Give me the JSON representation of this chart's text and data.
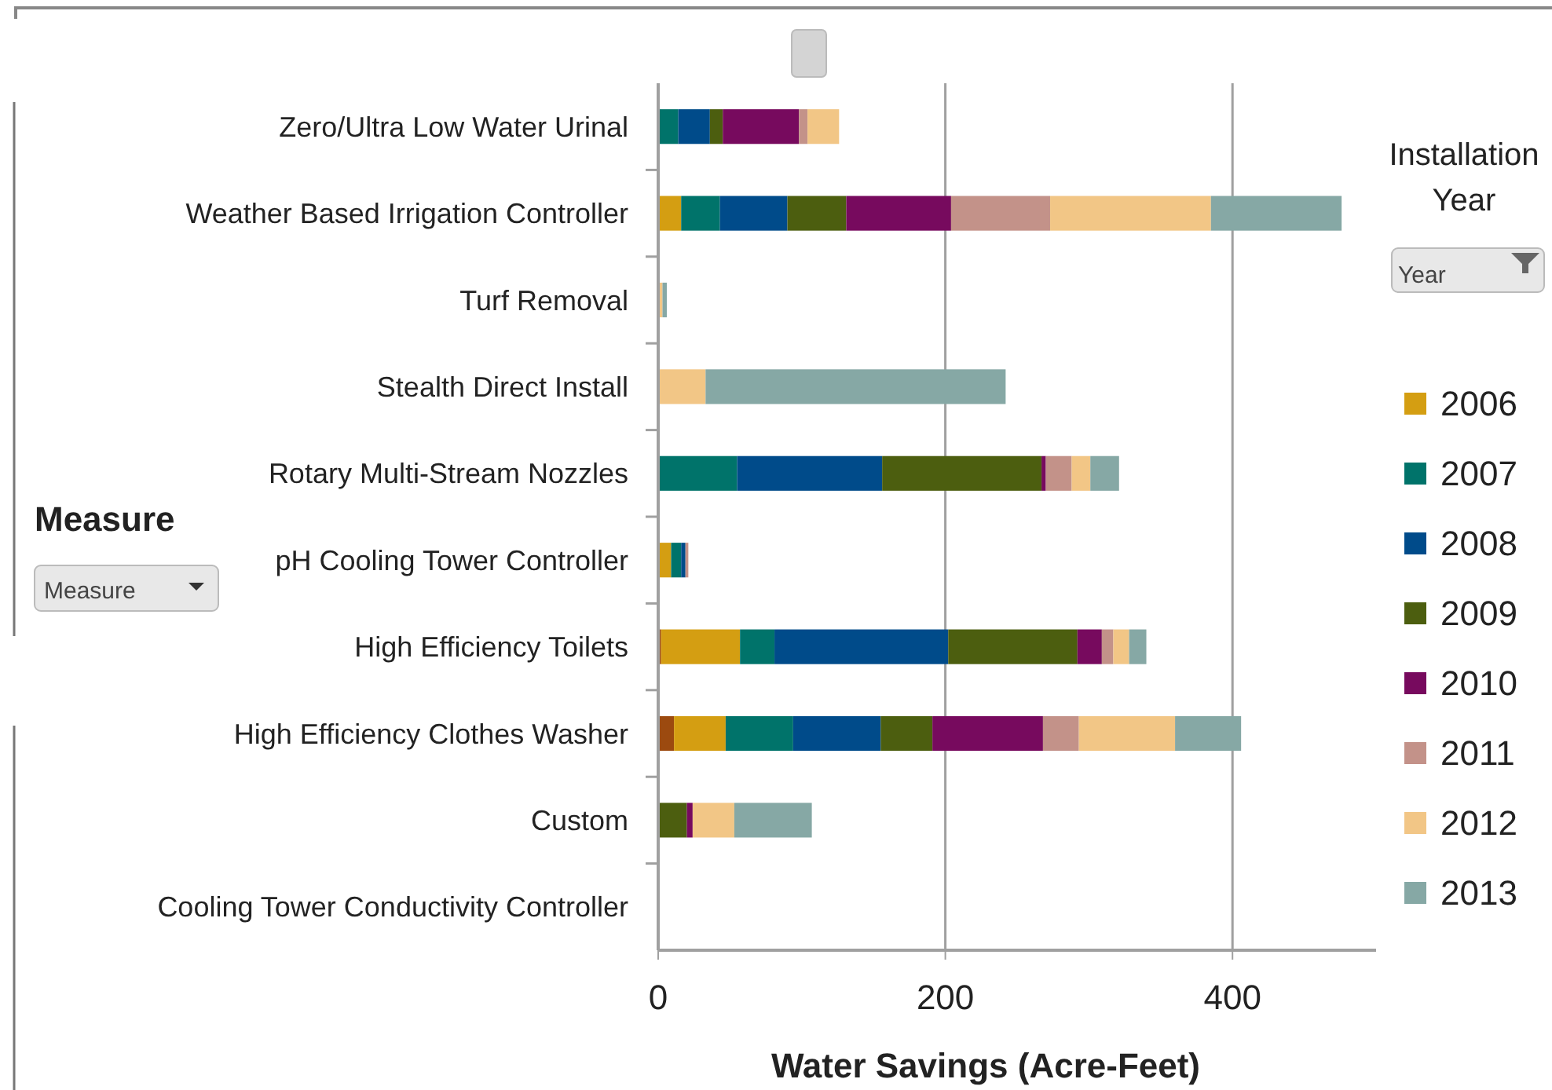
{
  "chart_data": {
    "type": "bar",
    "orientation": "horizontal",
    "stacked": true,
    "xlabel": "Water Savings (Acre-Feet)",
    "ylabel": "Measure",
    "legend_title": "Installation Year",
    "legend": "right",
    "grid": "x",
    "categories": [
      "Zero/Ultra Low Water Urinal",
      "Weather Based Irrigation Controller",
      "Turf Removal",
      "Stealth Direct Install",
      "Rotary Multi-Stream Nozzles",
      "pH Cooling Tower Controller",
      "High Efficiency Toilets",
      "High Efficiency Clothes Washer",
      "Custom",
      "Cooling Tower Conductivity Controller"
    ],
    "xlim": [
      0,
      500
    ],
    "xticks": [
      0,
      200,
      400
    ],
    "annotations": [
      "Measure",
      "Year"
    ],
    "series": [
      {
        "color": "#9c4a0f",
        "values": [
          null,
          null,
          null,
          null,
          null,
          null,
          2,
          11,
          null,
          null
        ]
      },
      {
        "name": "2006",
        "color": "#d49e12",
        "values": [
          null,
          16,
          null,
          null,
          null,
          9,
          55,
          36,
          null,
          null
        ]
      },
      {
        "name": "2007",
        "color": "#00736a",
        "values": [
          14,
          27,
          null,
          null,
          55,
          7,
          24,
          47,
          null,
          null
        ]
      },
      {
        "name": "2008",
        "color": "#004b8a",
        "values": [
          22,
          47,
          null,
          null,
          101,
          3,
          121,
          61,
          null,
          null
        ]
      },
      {
        "name": "2009",
        "color": "#4c5e0f",
        "values": [
          9,
          41,
          null,
          null,
          111,
          null,
          90,
          36,
          20,
          null
        ]
      },
      {
        "name": "2010",
        "color": "#770a5e",
        "values": [
          53,
          73,
          null,
          null,
          3,
          null,
          17,
          77,
          4,
          null
        ]
      },
      {
        "name": "2011",
        "color": "#c39289",
        "values": [
          6,
          69,
          null,
          null,
          18,
          2,
          8,
          25,
          null,
          null
        ]
      },
      {
        "name": "2012",
        "color": "#f2c686",
        "values": [
          22,
          112,
          3,
          33,
          13,
          null,
          11,
          67,
          29,
          null
        ]
      },
      {
        "name": "2013",
        "color": "#86a8a5",
        "values": [
          null,
          91,
          3,
          209,
          20,
          null,
          12,
          46,
          54,
          null
        ]
      }
    ]
  }
}
